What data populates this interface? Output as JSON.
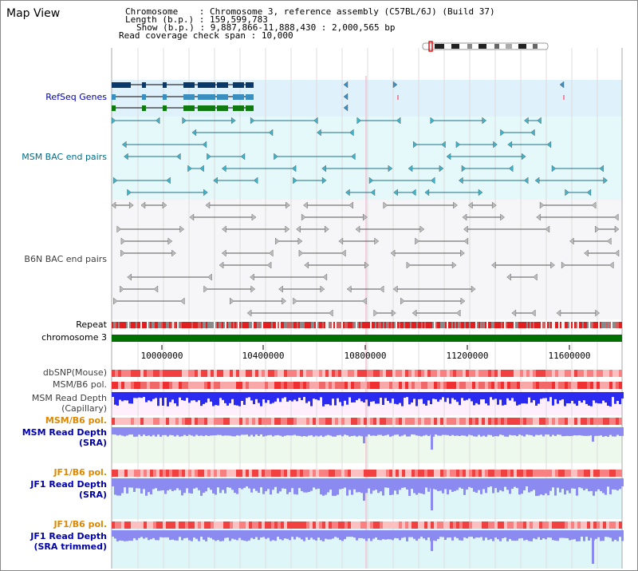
{
  "view": {
    "title": "Map View"
  },
  "header": {
    "chromosome_key": "Chromosome",
    "chromosome_value": "Chromosome 3, reference assembly (C57BL/6J) (Build 37)",
    "length_key": "Length (b.p.)",
    "length_value": "159,599,783",
    "show_key": "Show (b.p.)",
    "show_value": "9,887,866-11,888,430 : 2,000,565 bp",
    "coverage_key": "Read coverage check span",
    "coverage_value": "10,000"
  },
  "tracks": {
    "refseq": "RefSeq Genes",
    "msm_bac": "MSM BAC end pairs",
    "b6n_bac": "B6N BAC end pairs",
    "repeat": "Repeat",
    "chromosome": "chromosome 3",
    "dbsnp": "dbSNP(Mouse)",
    "msm_b6_pol_1": "MSM/B6 pol.",
    "msm_read_depth_cap_1": "MSM Read Depth",
    "msm_read_depth_cap_2": "(Capillary)",
    "msm_b6_pol_2": "MSM/B6 pol.",
    "msm_read_depth_sra_1": "MSM Read Depth",
    "msm_read_depth_sra_2": "(SRA)",
    "jf1_b6_pol_1": "JF1/B6 pol.",
    "jf1_read_depth_sra_1": "JF1 Read Depth",
    "jf1_read_depth_sra_2": "(SRA)",
    "jf1_b6_pol_2": "JF1/B6 pol.",
    "jf1_read_depth_trim_1": "JF1 Read Depth",
    "jf1_read_depth_trim_2": "(SRA trimmed)"
  },
  "ruler": {
    "ticks": [
      "10000000",
      "10400000",
      "10800000",
      "11200000",
      "11600000"
    ]
  },
  "colors": {
    "refseq_bg": "#dff1fb",
    "msm_bac_bg": "#e6f9fa",
    "b6n_bac_bg": "#f6f6f8",
    "chromosome_bar": "#007000",
    "depth_bg_msm": "#ffeefc",
    "depth_bg_sra": "#eef9ee",
    "depth_bg_jf1": "#dff6f8",
    "label_blue": "#0000aa",
    "label_orange": "#dd8800",
    "label_teal": "#006d8a",
    "label_gray": "#404040",
    "msm_depth": "#2a2af0",
    "sra_depth": "#8a8af0"
  }
}
